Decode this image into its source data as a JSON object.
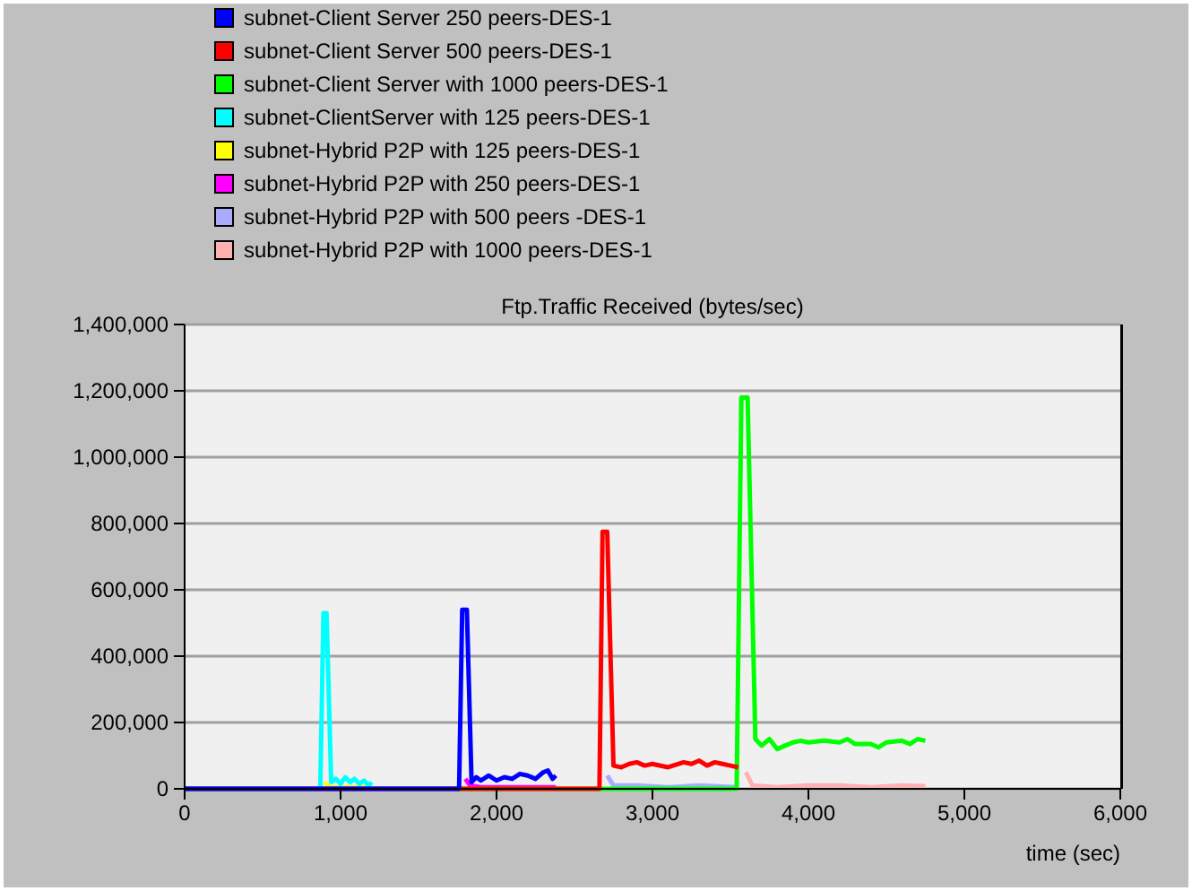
{
  "chart_data": {
    "type": "line",
    "title": "Ftp.Traffic Received (bytes/sec)",
    "xlabel": "time (sec)",
    "xlim": [
      0,
      6000
    ],
    "xticks": [
      {
        "value": 0,
        "label": "0"
      },
      {
        "value": 1000,
        "label": "1,000"
      },
      {
        "value": 2000,
        "label": "2,000"
      },
      {
        "value": 3000,
        "label": "3,000"
      },
      {
        "value": 4000,
        "label": "4,000"
      },
      {
        "value": 5000,
        "label": "5,000"
      },
      {
        "value": 6000,
        "label": "6,000"
      }
    ],
    "ylim": [
      0,
      1400000
    ],
    "yticks": [
      {
        "value": 0,
        "label": "0"
      },
      {
        "value": 200000,
        "label": "200,000"
      },
      {
        "value": 400000,
        "label": "400,000"
      },
      {
        "value": 600000,
        "label": "600,000"
      },
      {
        "value": 800000,
        "label": "800,000"
      },
      {
        "value": 1000000,
        "label": "1,000,000"
      },
      {
        "value": 1200000,
        "label": "1,200,000"
      },
      {
        "value": 1400000,
        "label": "1,400,000"
      }
    ],
    "grid": "y",
    "legend": "top",
    "marker": "none",
    "line_style": "solid",
    "series": [
      {
        "name": "subnet-Client Server 250 peers-DES-1",
        "color": "#0000ff",
        "x": [
          0,
          1760,
          1780,
          1810,
          1840,
          1870,
          1900,
          1950,
          2000,
          2050,
          2100,
          2150,
          2200,
          2250,
          2300,
          2330,
          2360,
          2380
        ],
        "values": [
          0,
          0,
          540000,
          540000,
          20000,
          35000,
          25000,
          40000,
          25000,
          35000,
          30000,
          45000,
          40000,
          30000,
          50000,
          55000,
          30000,
          40000
        ]
      },
      {
        "name": "subnet-Client Server 500 peers-DES-1",
        "color": "#ff0000",
        "x": [
          0,
          2660,
          2680,
          2710,
          2750,
          2800,
          2850,
          2900,
          2950,
          3000,
          3100,
          3200,
          3250,
          3300,
          3350,
          3400,
          3450,
          3500,
          3550
        ],
        "values": [
          0,
          0,
          775000,
          775000,
          70000,
          65000,
          75000,
          80000,
          70000,
          75000,
          65000,
          80000,
          75000,
          85000,
          70000,
          80000,
          75000,
          70000,
          65000
        ]
      },
      {
        "name": "subnet-Client Server with 1000 peers-DES-1",
        "color": "#00ff00",
        "x": [
          0,
          3540,
          3570,
          3610,
          3660,
          3700,
          3750,
          3800,
          3850,
          3900,
          3950,
          4000,
          4100,
          4200,
          4250,
          4300,
          4400,
          4450,
          4500,
          4600,
          4650,
          4700,
          4750
        ],
        "values": [
          0,
          0,
          1180000,
          1180000,
          150000,
          130000,
          150000,
          120000,
          130000,
          140000,
          145000,
          140000,
          145000,
          140000,
          150000,
          135000,
          135000,
          125000,
          140000,
          145000,
          135000,
          150000,
          145000
        ]
      },
      {
        "name": "subnet-ClientServer with 125 peers-DES-1",
        "color": "#00ffff",
        "x": [
          0,
          870,
          890,
          910,
          940,
          970,
          1000,
          1030,
          1060,
          1090,
          1120,
          1150,
          1180,
          1200
        ],
        "values": [
          0,
          0,
          530000,
          530000,
          20000,
          30000,
          15000,
          35000,
          20000,
          30000,
          15000,
          25000,
          10000,
          20000
        ]
      },
      {
        "name": "subnet-Hybrid P2P with 125 peers-DES-1",
        "color": "#ffff00",
        "x": [
          900,
          930,
          1000,
          1100,
          1200
        ],
        "values": [
          20000,
          5000,
          5000,
          5000,
          5000
        ]
      },
      {
        "name": "subnet-Hybrid P2P with 250 peers-DES-1",
        "color": "#ff00ff",
        "x": [
          1800,
          1830,
          1900,
          2000,
          2100,
          2200,
          2300,
          2380
        ],
        "values": [
          30000,
          10000,
          5000,
          5000,
          5000,
          5000,
          5000,
          5000
        ]
      },
      {
        "name": "subnet-Hybrid P2P with 500 peers -DES-1",
        "color": "#aaaaff",
        "x": [
          2710,
          2750,
          2900,
          3100,
          3300,
          3550
        ],
        "values": [
          40000,
          10000,
          10000,
          5000,
          10000,
          5000
        ]
      },
      {
        "name": "subnet-Hybrid P2P with 1000 peers-DES-1",
        "color": "#ffb0b0",
        "x": [
          3600,
          3640,
          3800,
          4000,
          4200,
          4400,
          4600,
          4750
        ],
        "values": [
          50000,
          10000,
          5000,
          10000,
          10000,
          5000,
          10000,
          8000
        ]
      }
    ]
  }
}
